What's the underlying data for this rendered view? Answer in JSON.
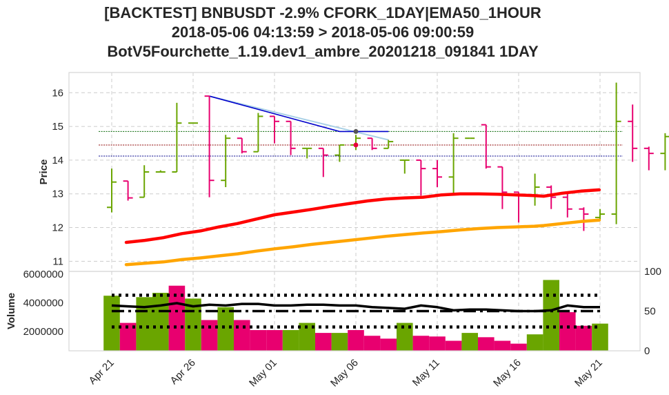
{
  "title_lines": [
    "[BACKTEST] BNBUSDT -2.9% CFORK_1DAY|EMA50_1HOUR",
    "2018-05-06 04:13:59 > 2018-05-06 09:00:59",
    "BotV5Fourchette_1.19.dev1_ambre_20201218_091841 1DAY"
  ],
  "chart_data": [
    {
      "type": "candlestick",
      "ylabel": "Price",
      "ylim": [
        10.7,
        16.6
      ],
      "yticks": [
        11,
        12,
        13,
        14,
        15,
        16
      ],
      "xticks": [
        {
          "label": "Apr 21",
          "day": 1
        },
        {
          "label": "Apr 26",
          "day": 6
        },
        {
          "label": "May 01",
          "day": 11
        },
        {
          "label": "May 06",
          "day": 16
        },
        {
          "label": "May 11",
          "day": 21
        },
        {
          "label": "May 16",
          "day": 26
        },
        {
          "label": "May 21",
          "day": 31
        }
      ],
      "grid": true,
      "colors": {
        "up": "#6aa500",
        "down": "#e8006f",
        "ema_short": "#ff0000",
        "ema_long": "#ffa500",
        "trend": "#0000cc",
        "trend_light": "#a8d0e6"
      },
      "ohlc": [
        [
          1,
          12.6,
          13.75,
          12.45,
          13.35
        ],
        [
          2,
          13.38,
          13.38,
          12.8,
          12.88
        ],
        [
          3,
          12.9,
          13.85,
          12.9,
          13.65
        ],
        [
          4,
          13.65,
          13.7,
          13.65,
          13.65
        ],
        [
          5,
          13.65,
          15.7,
          13.65,
          15.1
        ],
        [
          6,
          15.1,
          15.1,
          15.1,
          15.1
        ],
        [
          7,
          15.9,
          15.9,
          12.9,
          13.4
        ],
        [
          8,
          13.4,
          14.75,
          13.2,
          14.65
        ],
        [
          9,
          14.65,
          14.65,
          14.2,
          14.25
        ],
        [
          10,
          14.25,
          15.4,
          14.25,
          15.3
        ],
        [
          11,
          15.3,
          15.3,
          14.5,
          15.15
        ],
        [
          12,
          15.15,
          15.15,
          14.15,
          14.35
        ],
        [
          13,
          14.35,
          14.35,
          14.05,
          14.35
        ],
        [
          14,
          14.35,
          14.35,
          13.5,
          14.15
        ],
        [
          15,
          14.15,
          14.45,
          13.95,
          14.45
        ],
        [
          16,
          14.45,
          14.75,
          14.3,
          14.65
        ],
        [
          17,
          14.65,
          14.65,
          14.3,
          14.35
        ],
        [
          18,
          14.35,
          14.6,
          14.35,
          14.55
        ],
        [
          19,
          14.0,
          14.0,
          13.6,
          14.0
        ],
        [
          20,
          14.0,
          14.0,
          12.95,
          13.75
        ],
        [
          21,
          13.75,
          14.0,
          13.2,
          13.5
        ],
        [
          22,
          13.5,
          14.8,
          13.0,
          14.65
        ],
        [
          23,
          14.65,
          14.65,
          14.65,
          14.65
        ],
        [
          24,
          15.05,
          15.05,
          13.75,
          13.8
        ],
        [
          25,
          13.8,
          13.8,
          12.55,
          13.05
        ],
        [
          26,
          13.05,
          13.05,
          12.15,
          12.95
        ],
        [
          27,
          12.95,
          13.6,
          12.65,
          13.2
        ],
        [
          28,
          13.2,
          13.25,
          12.55,
          12.9
        ],
        [
          29,
          12.9,
          13.05,
          12.3,
          12.55
        ],
        [
          30,
          12.55,
          12.6,
          11.9,
          12.4
        ],
        [
          31,
          12.3,
          12.55,
          12.2,
          12.4
        ],
        [
          32,
          12.4,
          16.3,
          12.1,
          15.15
        ],
        [
          33,
          15.15,
          15.65,
          13.95,
          14.35
        ],
        [
          34,
          14.35,
          14.4,
          13.7,
          14.2
        ],
        [
          35,
          14.2,
          14.8,
          13.7,
          14.7
        ]
      ],
      "ema_short": [
        [
          1,
          11.56
        ],
        [
          3,
          11.62
        ],
        [
          5,
          11.7
        ],
        [
          7,
          11.82
        ],
        [
          9,
          11.9
        ],
        [
          11,
          12.02
        ],
        [
          13,
          12.12
        ],
        [
          15,
          12.25
        ],
        [
          17,
          12.38
        ],
        [
          19,
          12.46
        ],
        [
          21,
          12.54
        ],
        [
          23,
          12.63
        ],
        [
          25,
          12.71
        ],
        [
          27,
          12.79
        ],
        [
          29,
          12.85
        ],
        [
          31,
          12.88
        ],
        [
          33,
          12.9
        ],
        [
          35,
          12.97
        ],
        [
          37,
          13.0
        ],
        [
          39,
          13.0
        ],
        [
          41,
          12.99
        ],
        [
          43,
          12.97
        ],
        [
          45,
          12.95
        ],
        [
          46,
          12.93
        ],
        [
          48,
          13.02
        ],
        [
          50,
          13.08
        ],
        [
          52,
          13.12
        ]
      ],
      "ema_long": [
        [
          1,
          10.9
        ],
        [
          3,
          10.94
        ],
        [
          5,
          10.98
        ],
        [
          7,
          11.05
        ],
        [
          9,
          11.1
        ],
        [
          11,
          11.16
        ],
        [
          13,
          11.22
        ],
        [
          15,
          11.3
        ],
        [
          17,
          11.37
        ],
        [
          19,
          11.43
        ],
        [
          21,
          11.5
        ],
        [
          23,
          11.56
        ],
        [
          25,
          11.62
        ],
        [
          27,
          11.68
        ],
        [
          29,
          11.74
        ],
        [
          31,
          11.79
        ],
        [
          33,
          11.84
        ],
        [
          35,
          11.88
        ],
        [
          37,
          11.93
        ],
        [
          39,
          11.97
        ],
        [
          41,
          12.0
        ],
        [
          43,
          12.02
        ],
        [
          45,
          12.04
        ],
        [
          46,
          12.06
        ],
        [
          48,
          12.12
        ],
        [
          50,
          12.18
        ],
        [
          52,
          12.22
        ]
      ],
      "trend_line": [
        [
          7,
          15.9
        ],
        [
          15,
          14.85
        ],
        [
          18,
          14.85
        ]
      ],
      "trend_light_line": [
        [
          7,
          15.9
        ],
        [
          18,
          14.6
        ]
      ],
      "levels": [
        {
          "y": 14.85,
          "color": "#006400"
        },
        {
          "y": 14.45,
          "color": "#8b0000"
        },
        {
          "y": 14.12,
          "color": "#00008b"
        }
      ],
      "markers": [
        {
          "day": 16,
          "y": 14.85,
          "color": "#555555"
        },
        {
          "day": 16,
          "y": 14.45,
          "color": "#e8003d"
        }
      ]
    },
    {
      "type": "bar",
      "ylabel": "Volume",
      "ylim": [
        650000,
        6200000
      ],
      "yticks": [
        2000000,
        4000000,
        6000000
      ],
      "y2lim": [
        0,
        100
      ],
      "y2ticks": [
        0,
        50,
        100
      ],
      "volumes": [
        [
          1,
          4500000,
          "up"
        ],
        [
          2,
          2600000,
          "down"
        ],
        [
          3,
          4400000,
          "up"
        ],
        [
          4,
          4700000,
          "up"
        ],
        [
          5,
          5200000,
          "down"
        ],
        [
          6,
          4300000,
          "up"
        ],
        [
          7,
          2800000,
          "down"
        ],
        [
          8,
          3700000,
          "up"
        ],
        [
          9,
          2800000,
          "down"
        ],
        [
          10,
          2100000,
          "down"
        ],
        [
          11,
          2100000,
          "down"
        ],
        [
          12,
          2100000,
          "up"
        ],
        [
          13,
          2600000,
          "up"
        ],
        [
          14,
          1900000,
          "down"
        ],
        [
          15,
          1900000,
          "up"
        ],
        [
          16,
          2100000,
          "down"
        ],
        [
          17,
          1700000,
          "down"
        ],
        [
          18,
          1500000,
          "down"
        ],
        [
          19,
          2600000,
          "up"
        ],
        [
          20,
          1700000,
          "down"
        ],
        [
          21,
          1650000,
          "down"
        ],
        [
          22,
          1350000,
          "down"
        ],
        [
          23,
          1900000,
          "up"
        ],
        [
          24,
          1600000,
          "down"
        ],
        [
          25,
          1350000,
          "down"
        ],
        [
          26,
          1150000,
          "down"
        ],
        [
          27,
          1800000,
          "up"
        ],
        [
          28,
          5600000,
          "up"
        ],
        [
          29,
          3350000,
          "down"
        ],
        [
          30,
          2400000,
          "down"
        ],
        [
          31,
          2550000,
          "up"
        ]
      ],
      "rsi": [
        [
          1,
          57
        ],
        [
          2,
          56
        ],
        [
          3,
          55
        ],
        [
          4,
          57
        ],
        [
          5,
          60
        ],
        [
          6,
          56
        ],
        [
          7,
          58
        ],
        [
          8,
          57
        ],
        [
          9,
          59
        ],
        [
          10,
          59
        ],
        [
          11,
          57
        ],
        [
          12,
          57
        ],
        [
          13,
          58
        ],
        [
          14,
          58
        ],
        [
          15,
          57
        ],
        [
          16,
          57
        ],
        [
          17,
          55
        ],
        [
          18,
          54
        ],
        [
          19,
          53
        ],
        [
          20,
          57
        ],
        [
          21,
          55
        ],
        [
          22,
          51
        ],
        [
          23,
          52
        ],
        [
          24,
          52
        ],
        [
          25,
          51
        ],
        [
          26,
          50
        ],
        [
          27,
          50
        ],
        [
          28,
          51
        ],
        [
          29,
          57
        ],
        [
          30,
          55
        ],
        [
          31,
          55
        ]
      ],
      "rsi_levels": {
        "high": 70,
        "mid": 50,
        "low": 30
      }
    }
  ]
}
